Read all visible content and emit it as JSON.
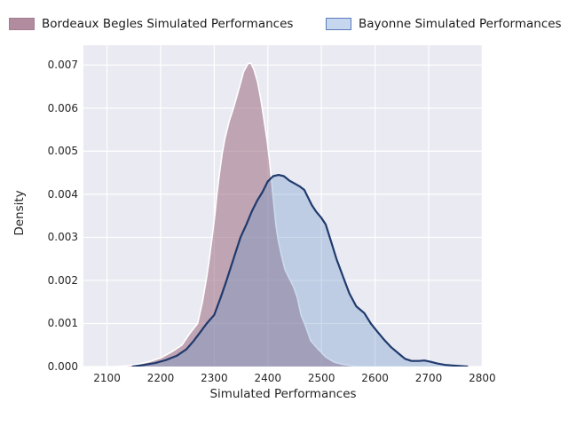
{
  "legend": {
    "items": [
      {
        "label": "Bordeaux Begles Simulated Performances",
        "swatch_fill": "#b18b9e",
        "swatch_border": "#a37d91"
      },
      {
        "label": "Bayonne Simulated Performances",
        "swatch_fill": "#c5d6ee",
        "swatch_border": "#5b7cb8"
      }
    ]
  },
  "chart_data": {
    "type": "area",
    "subtype": "kde-density",
    "title": "",
    "xlabel": "Simulated Performances",
    "ylabel": "Density",
    "xlim": [
      2056,
      2801
    ],
    "ylim": [
      0,
      0.00746
    ],
    "x_ticks": [
      2100,
      2200,
      2300,
      2400,
      2500,
      2600,
      2700,
      2800
    ],
    "y_ticks": [
      0,
      0.001,
      0.002,
      0.003,
      0.004,
      0.005,
      0.006,
      0.007
    ],
    "y_tick_decimals": 3,
    "grid": true,
    "legend_position": "top-outside",
    "plot_background": "#eaeaf2",
    "grid_color": "#ffffff",
    "series": [
      {
        "name": "Bordeaux Begles Simulated Performances",
        "line_color": "#ffffff",
        "line_width": 1.6,
        "fill_color": "rgba(154,105,128,0.55)",
        "points": [
          [
            2118,
            0
          ],
          [
            2140,
            2e-05
          ],
          [
            2160,
            6e-05
          ],
          [
            2180,
            0.00012
          ],
          [
            2200,
            0.0002
          ],
          [
            2222,
            0.00035
          ],
          [
            2240,
            0.0005
          ],
          [
            2255,
            0.00078
          ],
          [
            2269,
            0.001
          ],
          [
            2278,
            0.0015
          ],
          [
            2285,
            0.002
          ],
          [
            2291,
            0.0025
          ],
          [
            2296,
            0.003
          ],
          [
            2301,
            0.0035
          ],
          [
            2305,
            0.004
          ],
          [
            2310,
            0.0045
          ],
          [
            2315,
            0.00495
          ],
          [
            2320,
            0.0053
          ],
          [
            2328,
            0.0057
          ],
          [
            2336,
            0.006
          ],
          [
            2345,
            0.0064
          ],
          [
            2355,
            0.00685
          ],
          [
            2363,
            0.00703
          ],
          [
            2368,
            0.00705
          ],
          [
            2374,
            0.0069
          ],
          [
            2381,
            0.0066
          ],
          [
            2387,
            0.0062
          ],
          [
            2392,
            0.0058
          ],
          [
            2398,
            0.0053
          ],
          [
            2403,
            0.0048
          ],
          [
            2407,
            0.0043
          ],
          [
            2411,
            0.0038
          ],
          [
            2415,
            0.0033
          ],
          [
            2419,
            0.00295
          ],
          [
            2425,
            0.0026
          ],
          [
            2432,
            0.00225
          ],
          [
            2440,
            0.00205
          ],
          [
            2448,
            0.00185
          ],
          [
            2455,
            0.0016
          ],
          [
            2462,
            0.0012
          ],
          [
            2470,
            0.00095
          ],
          [
            2480,
            0.0006
          ],
          [
            2494,
            0.0004
          ],
          [
            2508,
            0.00022
          ],
          [
            2524,
            0.0001
          ],
          [
            2540,
            5e-05
          ],
          [
            2556,
            2e-05
          ],
          [
            2572,
            0
          ]
        ]
      },
      {
        "name": "Bayonne Simulated Performances",
        "line_color": "#1f3a6d",
        "line_width": 2.2,
        "fill_color": "rgba(108,152,200,0.35)",
        "points": [
          [
            2148,
            0
          ],
          [
            2170,
            4e-05
          ],
          [
            2190,
            8e-05
          ],
          [
            2210,
            0.00015
          ],
          [
            2230,
            0.00025
          ],
          [
            2248,
            0.0004
          ],
          [
            2262,
            0.0006
          ],
          [
            2274,
            0.0008
          ],
          [
            2286,
            0.001
          ],
          [
            2300,
            0.0012
          ],
          [
            2312,
            0.0016
          ],
          [
            2323,
            0.002
          ],
          [
            2336,
            0.0025
          ],
          [
            2349,
            0.003
          ],
          [
            2360,
            0.0033
          ],
          [
            2370,
            0.0036
          ],
          [
            2380,
            0.00385
          ],
          [
            2390,
            0.00405
          ],
          [
            2400,
            0.0043
          ],
          [
            2410,
            0.00442
          ],
          [
            2420,
            0.00445
          ],
          [
            2430,
            0.00442
          ],
          [
            2440,
            0.00432
          ],
          [
            2450,
            0.00425
          ],
          [
            2460,
            0.00418
          ],
          [
            2468,
            0.0041
          ],
          [
            2474,
            0.00395
          ],
          [
            2482,
            0.00375
          ],
          [
            2490,
            0.0036
          ],
          [
            2500,
            0.00345
          ],
          [
            2508,
            0.0033
          ],
          [
            2518,
            0.0029
          ],
          [
            2528,
            0.0025
          ],
          [
            2541,
            0.00206
          ],
          [
            2552,
            0.0017
          ],
          [
            2565,
            0.0014
          ],
          [
            2580,
            0.00124
          ],
          [
            2592,
            0.001
          ],
          [
            2605,
            0.0008
          ],
          [
            2617,
            0.00062
          ],
          [
            2630,
            0.00045
          ],
          [
            2644,
            0.0003
          ],
          [
            2656,
            0.00018
          ],
          [
            2668,
            0.00013
          ],
          [
            2682,
            0.00013
          ],
          [
            2692,
            0.00014
          ],
          [
            2704,
            0.00011
          ],
          [
            2716,
            7e-05
          ],
          [
            2730,
            4e-05
          ],
          [
            2748,
            2e-05
          ],
          [
            2772,
            0
          ]
        ]
      }
    ]
  }
}
